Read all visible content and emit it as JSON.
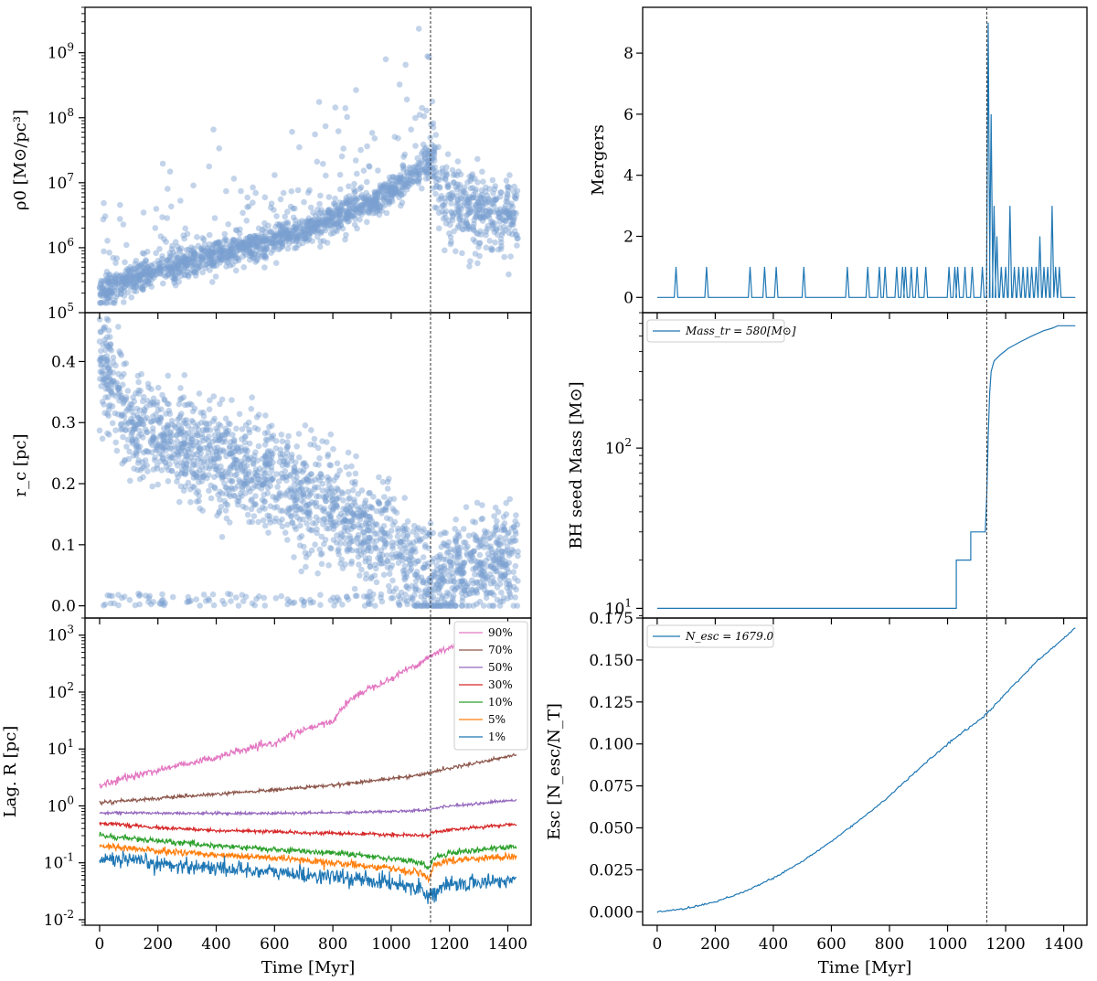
{
  "figure": {
    "xlabel": "Time [Myr]",
    "vline_x": 1135
  },
  "chart_data": [
    {
      "id": "density",
      "type": "scatter",
      "ylabel": "ρ0 [M⊙/pc³]",
      "yscale": "log",
      "xlim": [
        -50,
        1480
      ],
      "ylim": [
        100000,
        5000000000
      ],
      "yticks": [
        "10^5",
        "10^6",
        "10^7",
        "10^8",
        "10^9"
      ],
      "color": "#7a9fd0",
      "trend": [
        [
          0,
          200000
        ],
        [
          200,
          450000
        ],
        [
          400,
          750000
        ],
        [
          600,
          1300000
        ],
        [
          800,
          2800000
        ],
        [
          1000,
          7000000
        ],
        [
          1100,
          16000000
        ],
        [
          1135,
          25000000
        ],
        [
          1150,
          12000000
        ],
        [
          1200,
          5000000
        ],
        [
          1300,
          3500000
        ],
        [
          1430,
          3000000
        ]
      ],
      "n_points": 1900
    },
    {
      "id": "core-radius",
      "type": "scatter",
      "ylabel": "r_c [pc]",
      "yscale": "linear",
      "xlim": [
        -50,
        1480
      ],
      "ylim": [
        -0.02,
        0.48
      ],
      "yticks": [
        "0.0",
        "0.1",
        "0.2",
        "0.3",
        "0.4"
      ],
      "color": "#7a9fd0",
      "trend": [
        [
          0,
          0.4
        ],
        [
          100,
          0.3
        ],
        [
          400,
          0.24
        ],
        [
          700,
          0.18
        ],
        [
          1000,
          0.1
        ],
        [
          1135,
          0.03
        ],
        [
          1200,
          0.06
        ],
        [
          1430,
          0.08
        ]
      ],
      "n_points": 2100
    },
    {
      "id": "lagrangian-radii",
      "type": "line",
      "ylabel": "Lag. R [pc]",
      "yscale": "log",
      "xlim": [
        -50,
        1480
      ],
      "ylim": [
        0.008,
        2000
      ],
      "yticks": [
        "10^-2",
        "10^-1",
        "10^0",
        "10^1",
        "10^2",
        "10^3"
      ],
      "x": [
        0,
        200,
        400,
        600,
        800,
        1000,
        1100,
        1130,
        1145,
        1200,
        1300,
        1430
      ],
      "series": [
        {
          "name": "90%",
          "color": "#e377c2",
          "values": [
            2.2,
            4.2,
            7.0,
            12.5,
            30,
            170,
            320,
            420,
            460,
            600,
            950,
            1400
          ],
          "noise": 0.03
        },
        {
          "name": "70%",
          "color": "#8c564b",
          "values": [
            1.15,
            1.35,
            1.6,
            1.9,
            2.3,
            3.0,
            3.5,
            3.8,
            4.0,
            4.6,
            5.8,
            7.8
          ],
          "noise": 0.015
        },
        {
          "name": "50%",
          "color": "#9467bd",
          "values": [
            0.76,
            0.75,
            0.74,
            0.74,
            0.76,
            0.8,
            0.84,
            0.86,
            0.9,
            1.0,
            1.1,
            1.28
          ],
          "noise": 0.012
        },
        {
          "name": "30%",
          "color": "#d62728",
          "values": [
            0.5,
            0.41,
            0.37,
            0.35,
            0.33,
            0.31,
            0.3,
            0.3,
            0.35,
            0.38,
            0.42,
            0.48
          ],
          "noise": 0.015
        },
        {
          "name": "10%",
          "color": "#2ca02c",
          "values": [
            0.3,
            0.24,
            0.2,
            0.17,
            0.15,
            0.12,
            0.1,
            0.08,
            0.12,
            0.15,
            0.17,
            0.19
          ],
          "noise": 0.025
        },
        {
          "name": "5%",
          "color": "#ff7f0e",
          "values": [
            0.2,
            0.16,
            0.14,
            0.12,
            0.1,
            0.08,
            0.065,
            0.05,
            0.09,
            0.11,
            0.12,
            0.13
          ],
          "noise": 0.03
        },
        {
          "name": "1%",
          "color": "#1f77b4",
          "values": [
            0.12,
            0.095,
            0.082,
            0.068,
            0.056,
            0.045,
            0.036,
            0.026,
            0.03,
            0.04,
            0.045,
            0.05
          ],
          "noise": 0.07
        }
      ]
    },
    {
      "id": "mergers",
      "type": "line",
      "ylabel": "Mergers",
      "yscale": "linear",
      "xlim": [
        -50,
        1480
      ],
      "ylim": [
        -0.5,
        9.5
      ],
      "yticks": [
        "0",
        "2",
        "4",
        "6",
        "8"
      ],
      "color": "#1f77b4",
      "events": [
        [
          65,
          1
        ],
        [
          170,
          1
        ],
        [
          320,
          1
        ],
        [
          370,
          1
        ],
        [
          410,
          1
        ],
        [
          505,
          1
        ],
        [
          655,
          1
        ],
        [
          725,
          1
        ],
        [
          765,
          1
        ],
        [
          785,
          1
        ],
        [
          825,
          1
        ],
        [
          845,
          1
        ],
        [
          855,
          1
        ],
        [
          875,
          1
        ],
        [
          895,
          1
        ],
        [
          925,
          1
        ],
        [
          1005,
          1
        ],
        [
          1025,
          1
        ],
        [
          1035,
          1
        ],
        [
          1060,
          1
        ],
        [
          1085,
          1
        ],
        [
          1120,
          1
        ],
        [
          1140,
          9
        ],
        [
          1150,
          6
        ],
        [
          1160,
          3
        ],
        [
          1170,
          2
        ],
        [
          1185,
          1
        ],
        [
          1200,
          1
        ],
        [
          1215,
          3
        ],
        [
          1230,
          1
        ],
        [
          1245,
          1
        ],
        [
          1260,
          1
        ],
        [
          1275,
          1
        ],
        [
          1290,
          1
        ],
        [
          1305,
          1
        ],
        [
          1318,
          2
        ],
        [
          1332,
          1
        ],
        [
          1345,
          1
        ],
        [
          1360,
          3
        ],
        [
          1372,
          1
        ],
        [
          1385,
          1
        ]
      ]
    },
    {
      "id": "bh-seed-mass",
      "type": "line",
      "ylabel": "BH seed  Mass [M⊙]",
      "yscale": "log",
      "xlim": [
        -50,
        1480
      ],
      "ylim": [
        8.7,
        700
      ],
      "yticks": [
        "10^1",
        "10^2"
      ],
      "color": "#1f77b4",
      "legend": "Mass_tr = 580[M⊙]",
      "legend_position": "upper left",
      "steps": [
        [
          0,
          10
        ],
        [
          1030,
          10
        ],
        [
          1030,
          20
        ],
        [
          1080,
          20
        ],
        [
          1080,
          30
        ],
        [
          1130,
          30
        ],
        [
          1135,
          50
        ],
        [
          1140,
          120
        ],
        [
          1145,
          220
        ],
        [
          1150,
          300
        ],
        [
          1160,
          350
        ],
        [
          1180,
          380
        ],
        [
          1210,
          420
        ],
        [
          1250,
          460
        ],
        [
          1290,
          500
        ],
        [
          1330,
          540
        ],
        [
          1360,
          560
        ],
        [
          1380,
          580
        ],
        [
          1440,
          580
        ]
      ]
    },
    {
      "id": "escapers",
      "type": "line",
      "ylabel": "Esc [N_esc/N_T]",
      "yscale": "linear",
      "xlim": [
        -50,
        1480
      ],
      "ylim": [
        -0.008,
        0.175
      ],
      "yticks": [
        "0.000",
        "0.025",
        "0.050",
        "0.075",
        "0.100",
        "0.125",
        "0.150",
        "0.175"
      ],
      "color": "#1f77b4",
      "legend": "N_esc = 1679.0",
      "legend_position": "upper left",
      "x": [
        0,
        100,
        200,
        300,
        400,
        500,
        600,
        700,
        800,
        900,
        1000,
        1100,
        1135,
        1200,
        1300,
        1400,
        1440
      ],
      "values": [
        0.0,
        0.002,
        0.006,
        0.012,
        0.02,
        0.03,
        0.042,
        0.055,
        0.069,
        0.085,
        0.1,
        0.113,
        0.118,
        0.13,
        0.148,
        0.163,
        0.169
      ]
    }
  ],
  "xticks": [
    "0",
    "200",
    "400",
    "600",
    "800",
    "1000",
    "1200",
    "1400"
  ]
}
